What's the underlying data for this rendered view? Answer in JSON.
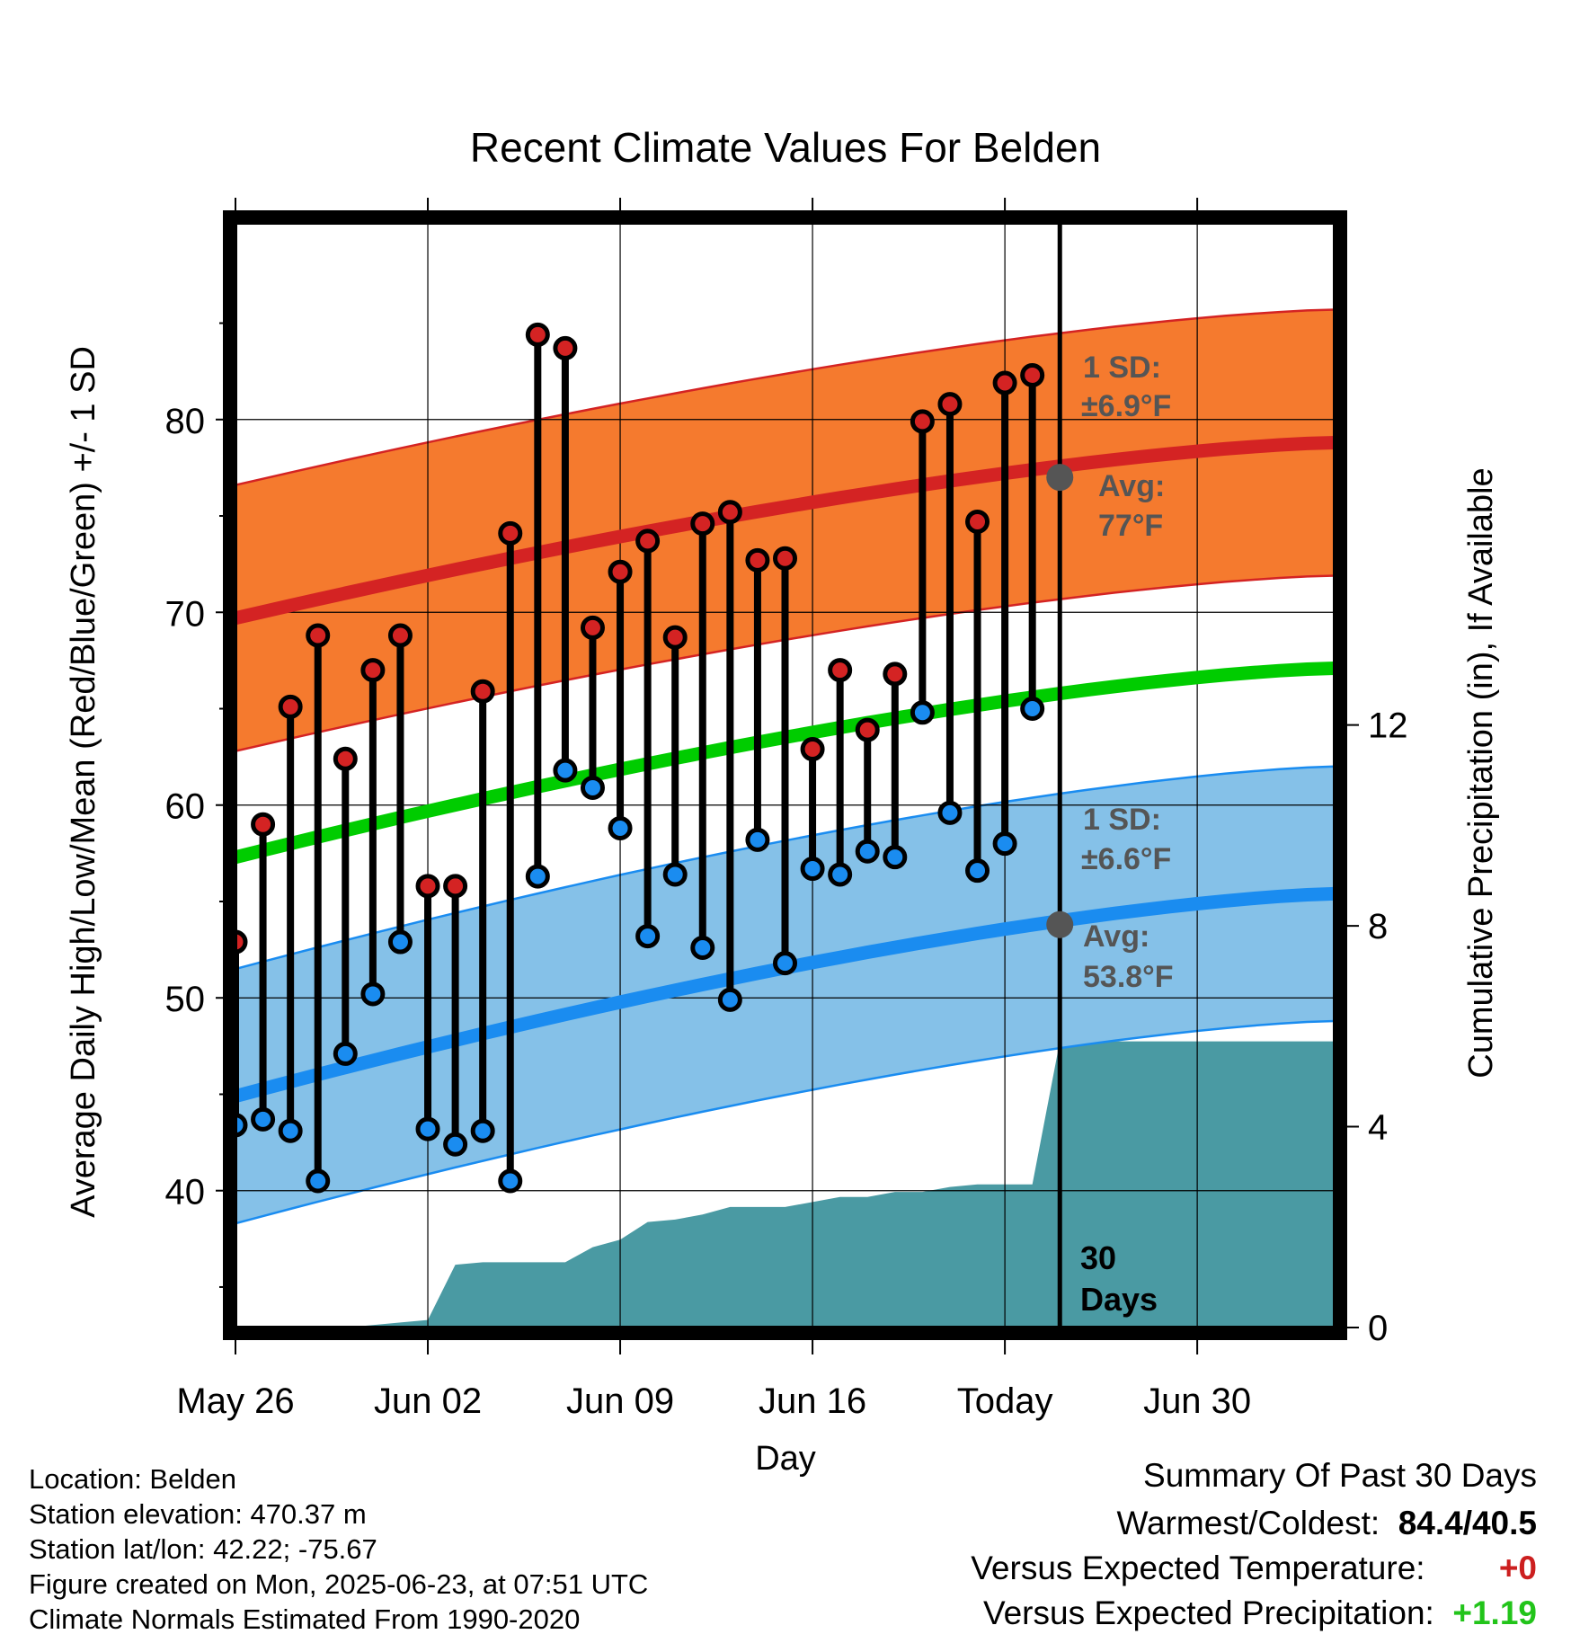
{
  "chart_data": {
    "type": "line",
    "title": "Recent Climate Values For Belden",
    "xlabel": "Day",
    "ylabel": "Average Daily High/Low/Mean (Red/Blue/Green) +/- 1 SD",
    "y2label": "Cumulative Precipitation (in), If Available",
    "ylim": [
      32.9,
      90.2
    ],
    "y2lim": [
      0,
      22
    ],
    "y_ticks": [
      "40",
      "50",
      "60",
      "70",
      "80"
    ],
    "y2_ticks": [
      "0",
      "4",
      "8",
      "12"
    ],
    "x_ticks": [
      "May 26",
      "Jun 02",
      "Jun 09",
      "Jun 16",
      "Today",
      "Jun 30"
    ],
    "today_label": "30 Days",
    "observed": {
      "highs": [
        52.9,
        59.0,
        65.1,
        68.8,
        62.4,
        67.0,
        68.8,
        55.8,
        55.8,
        65.9,
        74.1,
        84.4,
        83.7,
        69.2,
        72.1,
        73.7,
        68.7,
        74.6,
        75.2,
        72.7,
        72.8,
        62.9,
        67.0,
        63.9,
        66.8,
        79.9,
        80.8,
        74.7,
        81.9,
        82.3
      ],
      "lows": [
        43.4,
        43.7,
        43.1,
        40.5,
        47.1,
        50.2,
        52.9,
        43.2,
        42.4,
        43.1,
        40.5,
        56.3,
        61.8,
        60.9,
        58.8,
        53.2,
        56.4,
        52.6,
        49.9,
        58.2,
        51.8,
        56.7,
        56.4,
        57.6,
        57.3,
        64.8,
        59.6,
        56.6,
        58.0,
        65.0
      ]
    },
    "normals": {
      "avg_high_start": 69.7,
      "avg_high_today": 77,
      "avg_high_end": 78.8,
      "avg_low_start": 44.9,
      "avg_low_today": 53.8,
      "avg_low_end": 55.4,
      "avg_mean_start": 57.3,
      "avg_mean_end": 67.1,
      "sd_high": 6.9,
      "sd_low": 6.6
    },
    "precip_cumulative": [
      0,
      0,
      0,
      0,
      0,
      0.05,
      0.1,
      0.15,
      1.25,
      1.3,
      1.3,
      1.3,
      1.3,
      1.6,
      1.75,
      2.1,
      2.15,
      2.25,
      2.4,
      2.4,
      2.4,
      2.5,
      2.6,
      2.6,
      2.7,
      2.7,
      2.8,
      2.85,
      2.85,
      2.85,
      5.7,
      5.7,
      5.7,
      5.7,
      5.7,
      5.7,
      5.7,
      5.7,
      5.7,
      5.7,
      5.7
    ],
    "annotations": {
      "high_sd_label": "1 SD:",
      "high_sd_value": "±6.9°F",
      "high_avg_label": "Avg:",
      "high_avg_value": "77°F",
      "low_sd_label": "1 SD:",
      "low_sd_value": "±6.6°F",
      "low_avg_label": "Avg:",
      "low_avg_value": "53.8°F"
    },
    "colors": {
      "high_band": "#f57a2e",
      "high_line": "#d42323",
      "low_band": "#85c1e8",
      "low_line": "#1a8cf0",
      "mean_line": "#00cc00",
      "precip": "#4a9aa3",
      "high_marker": "#d42323",
      "low_marker": "#1a8cf0",
      "annotation": "#555555"
    }
  },
  "info": {
    "location": "Location: Belden",
    "elevation": "Station elevation: 470.37 m",
    "latlon": "Station lat/lon: 42.22; -75.67",
    "created": "Figure created on Mon, 2025-06-23, at 07:51 UTC",
    "normals": "Climate Normals Estimated From 1990-2020"
  },
  "summary": {
    "title": "Summary Of Past 30 Days",
    "warmest_label": "Warmest/Coldest:",
    "warmest_value": "84.4/40.5",
    "temp_label": "Versus Expected Temperature:",
    "temp_value": "+0",
    "precip_label": "Versus Expected Precipitation:",
    "precip_value": "+1.19"
  }
}
